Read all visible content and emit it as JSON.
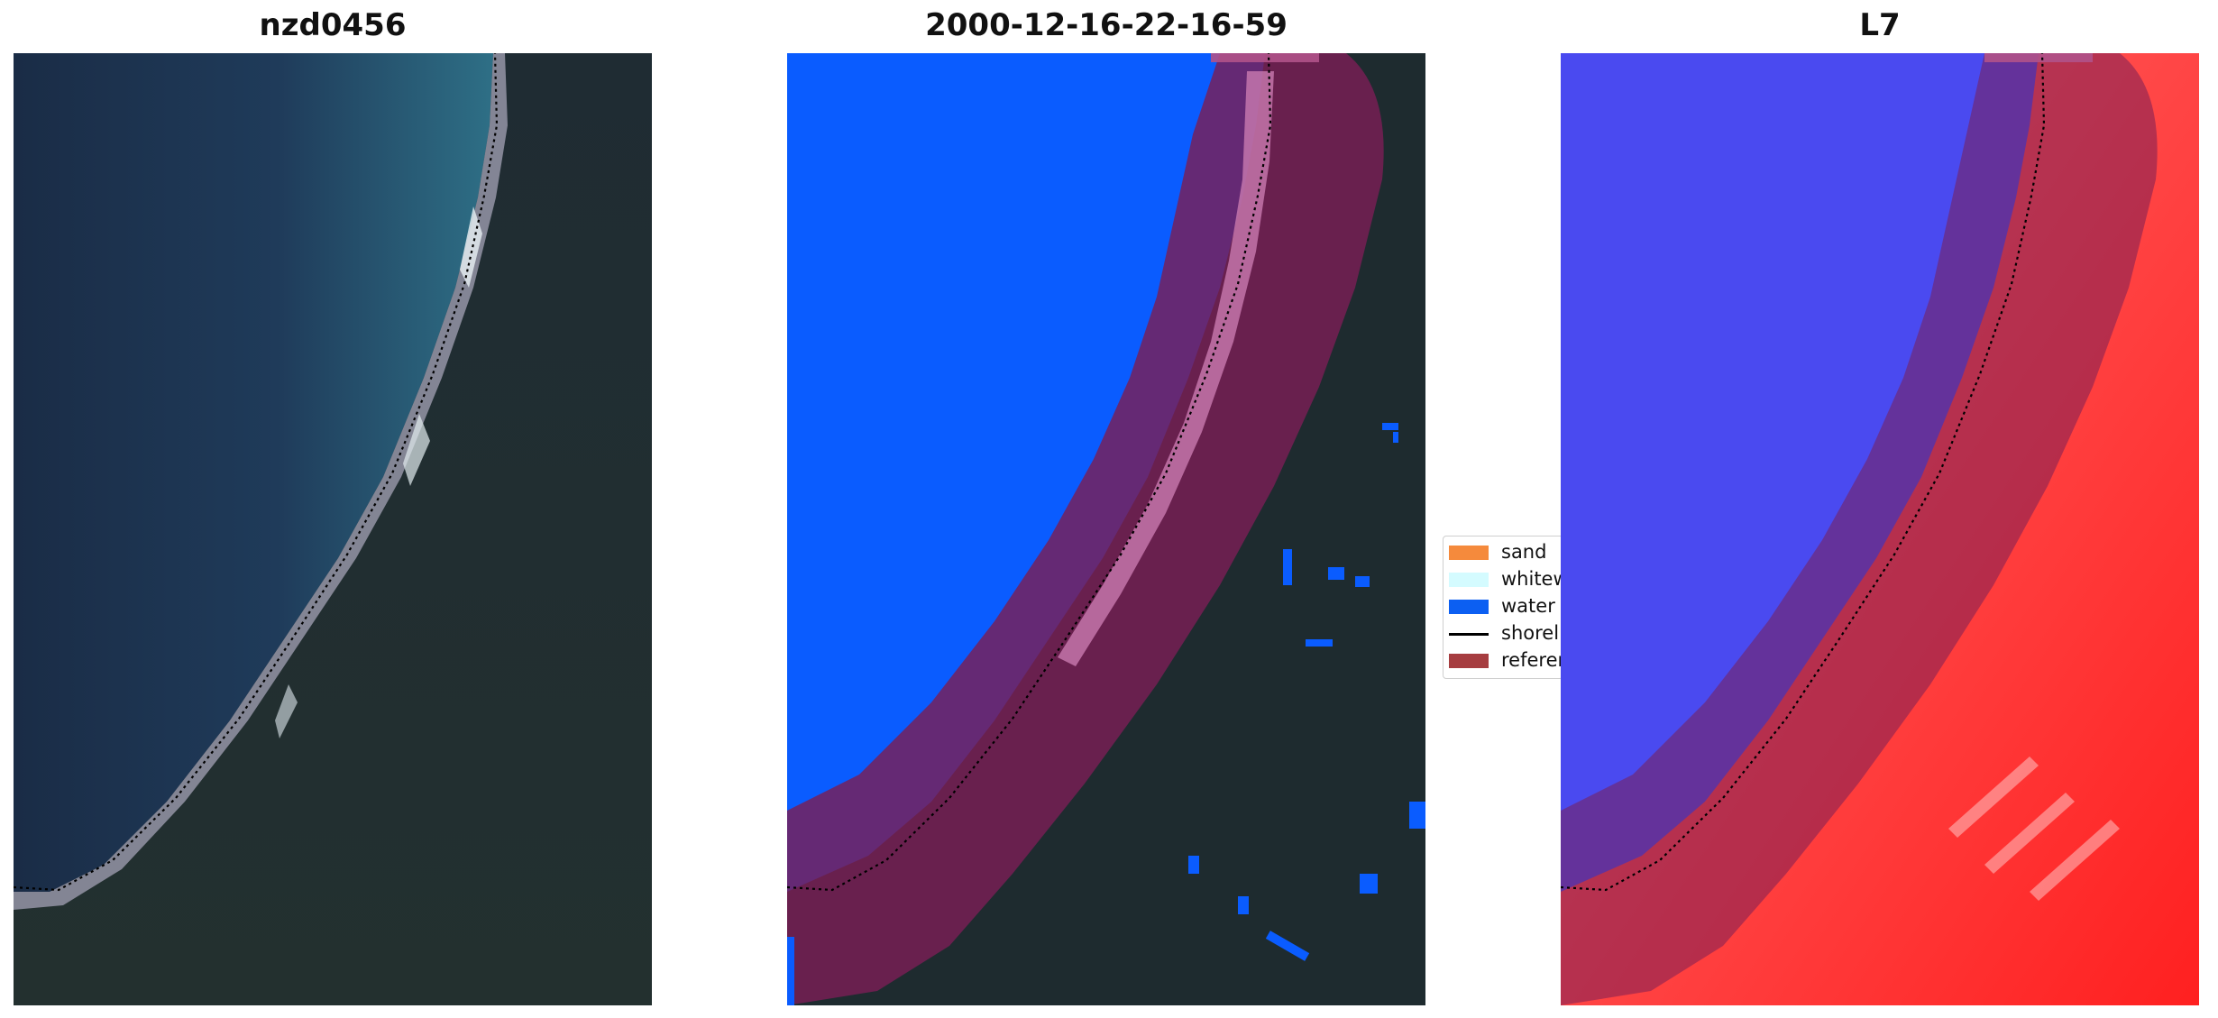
{
  "panels": [
    {
      "title": "nzd0456"
    },
    {
      "title": "2000-12-16-22-16-59"
    },
    {
      "title": "L7"
    }
  ],
  "legend": {
    "items": [
      {
        "label": "sand",
        "color": "#f58a3c",
        "kind": "patch"
      },
      {
        "label": "whitew",
        "color": "#d4fbff",
        "kind": "patch"
      },
      {
        "label": "water",
        "color": "#0c5ff2",
        "kind": "patch"
      },
      {
        "label": "shorel",
        "color": "#000000",
        "kind": "line"
      },
      {
        "label": "referen",
        "color": "#a63d40",
        "kind": "patch"
      }
    ]
  },
  "colors": {
    "water_class": "#0a5cff",
    "reference_buffer": "#7a1f55",
    "shoreline": "#000000",
    "ocean_rgb": "#1f3550",
    "land_rgb": "#1e2b2f",
    "index_water": "#3b35f0",
    "index_land": "#ff2a2a"
  }
}
